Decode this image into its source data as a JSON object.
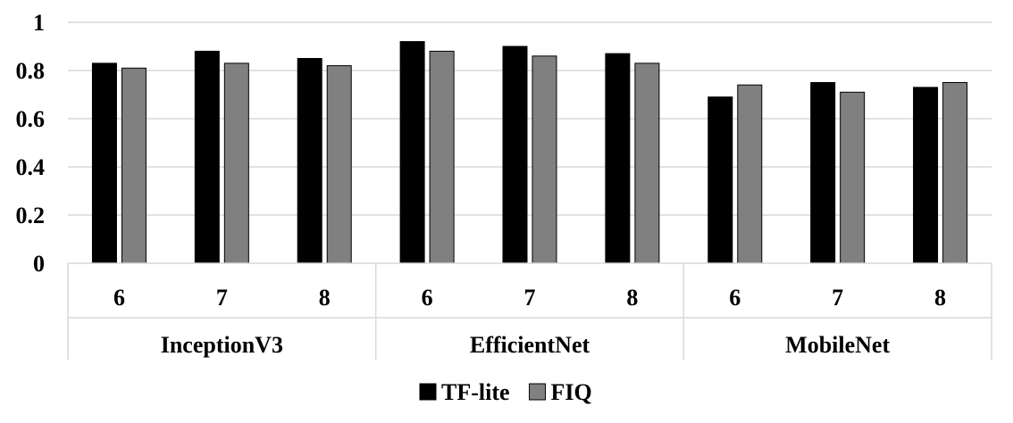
{
  "chart_data": {
    "type": "bar",
    "title": "",
    "xlabel": "",
    "ylabel": "",
    "ylim": [
      0,
      1
    ],
    "yticks": [
      "0",
      "0.2",
      "0.4",
      "0.6",
      "0.8",
      "1"
    ],
    "ytick_values": [
      0,
      0.2,
      0.4,
      0.6,
      0.8,
      1
    ],
    "grid": true,
    "legend_position": "bottom-center",
    "groups": [
      {
        "label": "InceptionV3",
        "categories": [
          "6",
          "7",
          "8"
        ]
      },
      {
        "label": "EfficientNet",
        "categories": [
          "6",
          "7",
          "8"
        ]
      },
      {
        "label": "MobileNet",
        "categories": [
          "6",
          "7",
          "8"
        ]
      }
    ],
    "series": [
      {
        "name": "TF-lite",
        "color": "#000000",
        "values": [
          0.83,
          0.88,
          0.85,
          0.92,
          0.9,
          0.87,
          0.69,
          0.75,
          0.73
        ]
      },
      {
        "name": "FIQ",
        "color": "#808080",
        "values": [
          0.81,
          0.83,
          0.82,
          0.88,
          0.86,
          0.83,
          0.74,
          0.71,
          0.75
        ]
      }
    ]
  }
}
